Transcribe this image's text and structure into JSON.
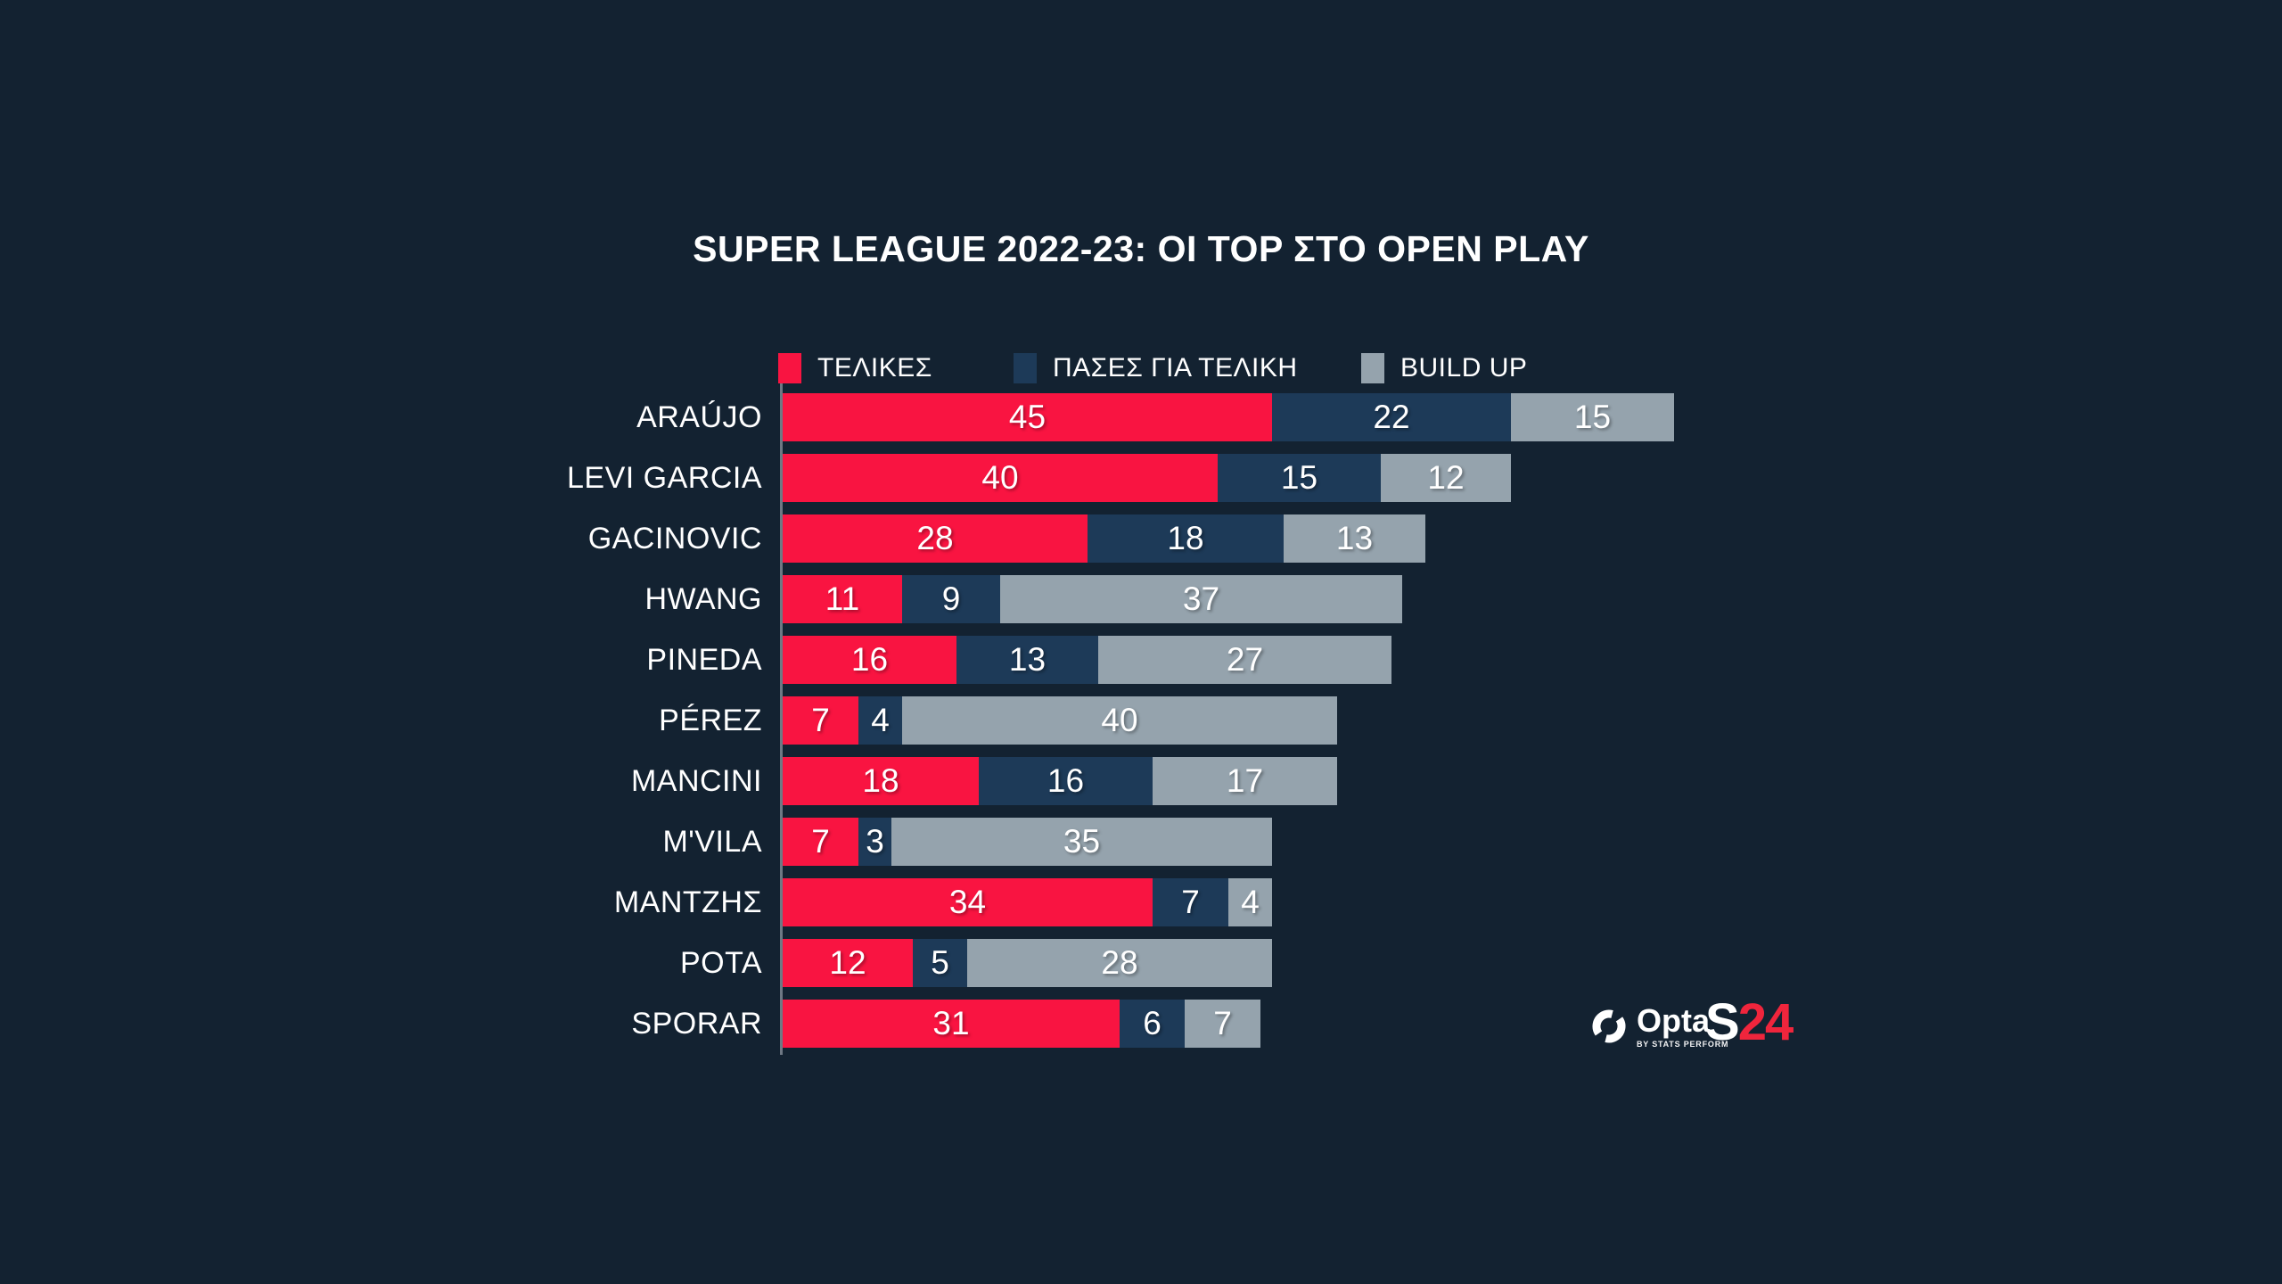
{
  "title": {
    "part1": "SUPER LEAGUE 2022-23:",
    "part2": " ΟΙ TOP ΣΤΟ OPEN PLAY"
  },
  "chart_data": {
    "type": "bar",
    "orientation": "horizontal",
    "stacked": true,
    "title": "SUPER LEAGUE 2022-23: ΟΙ TOP ΣΤΟ OPEN PLAY",
    "legend_position": "top",
    "grid": false,
    "value_labels": "inside-center",
    "categories": [
      "ARAÚJO",
      "LEVI GARCIA",
      "GACINOVIC",
      "HWANG",
      "PINEDA",
      "PÉREZ",
      "MANCINI",
      "M'VILA",
      "ΜΑΝΤΖΗΣ",
      "ΡΟΤΑ",
      "SPORAR"
    ],
    "series": [
      {
        "name": "ΤΕΛΙΚΕΣ",
        "color": "#F91441",
        "values": [
          45,
          40,
          28,
          11,
          16,
          7,
          18,
          7,
          34,
          12,
          31
        ]
      },
      {
        "name": "ΠΑΣΕΣ ΓΙΑ ΤΕΛΙΚΗ",
        "color": "#1D3A58",
        "values": [
          22,
          15,
          18,
          9,
          13,
          4,
          16,
          3,
          7,
          5,
          6
        ]
      },
      {
        "name": "BUILD UP",
        "color": "#95A3AD",
        "values": [
          15,
          12,
          13,
          37,
          27,
          40,
          17,
          35,
          4,
          28,
          7
        ]
      }
    ],
    "totals": [
      82,
      67,
      59,
      57,
      56,
      51,
      51,
      45,
      45,
      45,
      44
    ]
  },
  "branding": {
    "opta_word": "Opta",
    "opta_sub": "BY STATS PERFORM",
    "s24_white": "S",
    "s24_red": "24"
  },
  "colors": {
    "background": "#132231",
    "series_red": "#F91441",
    "series_navy": "#1D3A58",
    "series_gray": "#95A3AD",
    "axis_line": "#6E7884",
    "text": "#FFFFFF",
    "s24_red": "#F0253C"
  }
}
